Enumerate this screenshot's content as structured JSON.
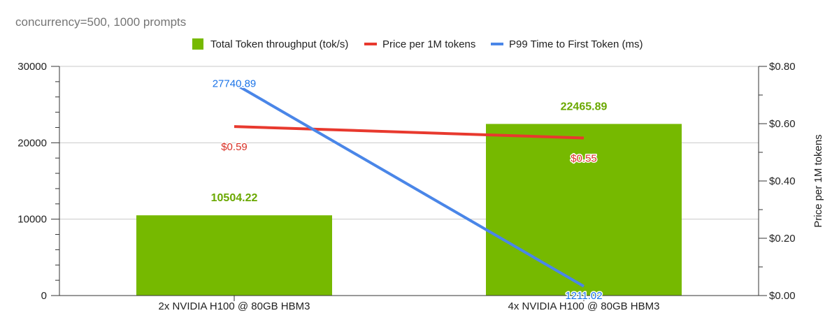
{
  "chart_data": {
    "type": "combo",
    "subtitle": "concurrency=500, 1000 prompts",
    "categories": [
      "2x NVIDIA H100 @ 80GB HBM3",
      "4x NVIDIA H100 @ 80GB HBM3"
    ],
    "series": [
      {
        "name": "Total Token throughput (tok/s)",
        "kind": "bar",
        "axis": "left",
        "color": "#76b900",
        "label_color": "#6aa800",
        "values": [
          10504.22,
          22465.89
        ],
        "labels": [
          "10504.22",
          "22465.89"
        ]
      },
      {
        "name": "Price per 1M tokens",
        "kind": "line",
        "axis": "right",
        "color": "#e8392e",
        "label_color": "#d93025",
        "values": [
          0.59,
          0.55
        ],
        "labels": [
          "$0.59",
          "$0.55"
        ]
      },
      {
        "name": "P99 Time to First Token (ms)",
        "kind": "line",
        "axis": "left",
        "color": "#4a86e8",
        "label_color": "#1a73e8",
        "values": [
          27740.89,
          1211.02
        ],
        "labels": [
          "27740.89",
          "1211.02"
        ]
      }
    ],
    "y_left": {
      "min": 0,
      "max": 30000,
      "ticks": [
        0,
        10000,
        20000,
        30000
      ],
      "tick_labels": [
        "0",
        "10000",
        "20000",
        "30000"
      ],
      "label": ""
    },
    "y_right": {
      "min": 0,
      "max": 0.8,
      "ticks": [
        0,
        0.2,
        0.4,
        0.6,
        0.8
      ],
      "tick_labels": [
        "$0.00",
        "$0.20",
        "$0.40",
        "$0.60",
        "$0.80"
      ],
      "label": "Price per 1M tokens"
    },
    "grid": true,
    "legend_position": "top-center"
  }
}
